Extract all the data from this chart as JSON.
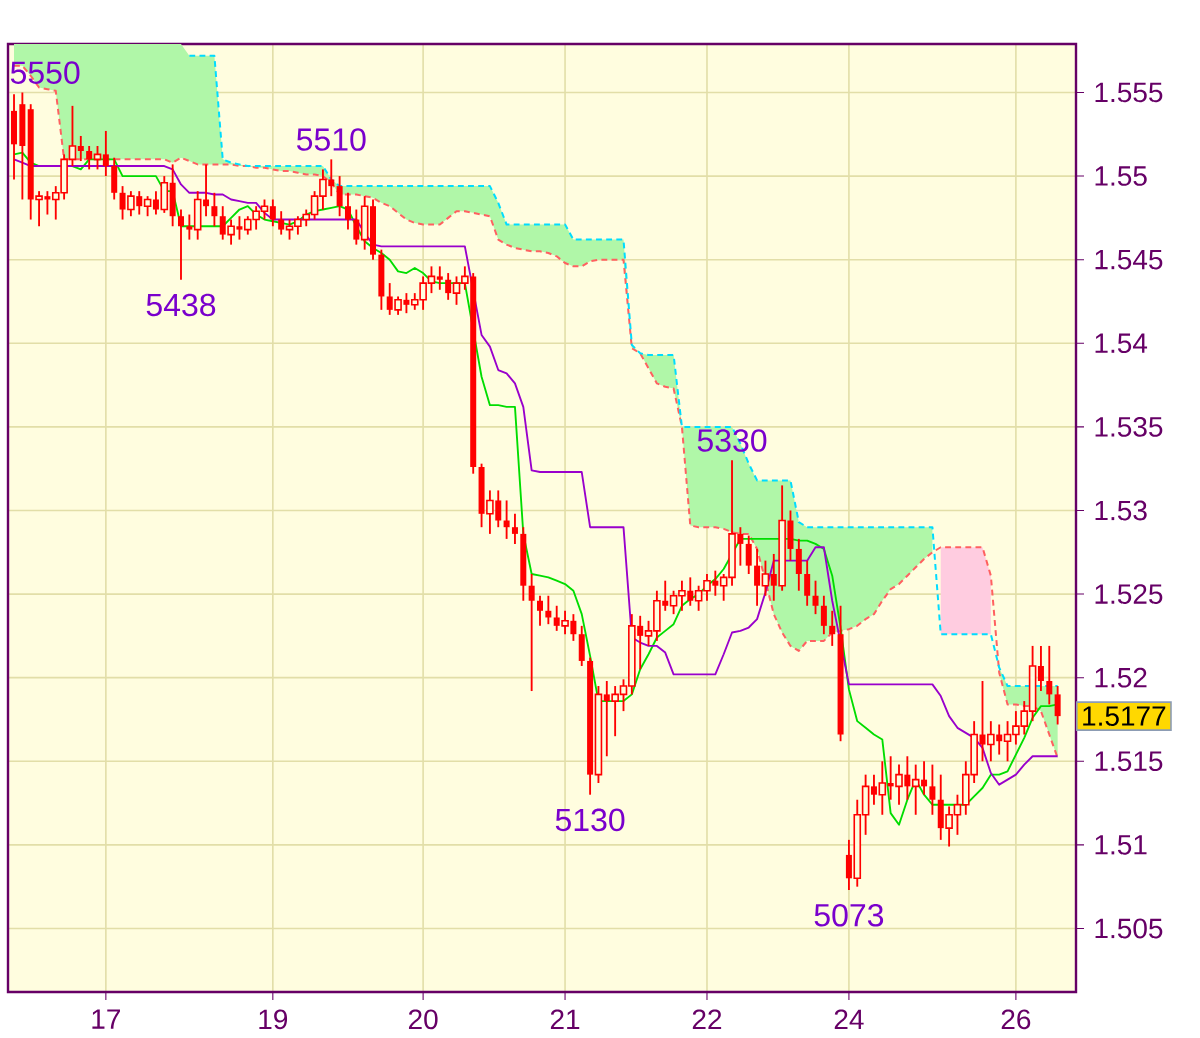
{
  "chart_data": {
    "type": "candlestick",
    "color": "#ff0000",
    "categories": [
      null,
      null,
      null,
      null,
      null,
      null,
      null,
      null,
      null,
      null,
      null,
      "17",
      null,
      null,
      null,
      null,
      null,
      null,
      null,
      null,
      null,
      null,
      null,
      null,
      null,
      null,
      null,
      null,
      null,
      null,
      null,
      "19",
      null,
      null,
      null,
      null,
      null,
      null,
      null,
      null,
      null,
      null,
      null,
      null,
      null,
      null,
      null,
      null,
      null,
      "20",
      null,
      null,
      null,
      null,
      null,
      null,
      null,
      null,
      null,
      null,
      null,
      null,
      null,
      null,
      null,
      null,
      "21",
      null,
      null,
      null,
      null,
      null,
      null,
      null,
      null,
      null,
      null,
      null,
      null,
      null,
      null,
      null,
      null,
      "22",
      null,
      null,
      null,
      null,
      null,
      null,
      null,
      null,
      null,
      null,
      null,
      null,
      null,
      null,
      null,
      null,
      "24",
      null,
      null,
      null,
      null,
      null,
      null,
      null,
      null,
      null,
      null,
      null,
      null,
      null,
      null,
      null,
      null,
      null,
      null,
      null,
      "26",
      null,
      null,
      null,
      null,
      null
    ],
    "ohlc": [
      [
        1.5539,
        1.5549,
        1.5498,
        1.5519
      ],
      [
        1.5543,
        1.555,
        1.5486,
        1.5518
      ],
      [
        1.554,
        1.5543,
        1.5474,
        1.5486
      ],
      [
        1.5486,
        1.5491,
        1.547,
        1.5488
      ],
      [
        1.5488,
        1.5491,
        1.5477,
        1.5486
      ],
      [
        1.5486,
        1.5494,
        1.5474,
        1.549
      ],
      [
        1.549,
        1.5513,
        1.5486,
        1.551
      ],
      [
        1.551,
        1.5542,
        1.5506,
        1.5518
      ],
      [
        1.5518,
        1.5524,
        1.5509,
        1.5515
      ],
      [
        1.5515,
        1.5518,
        1.5504,
        1.551
      ],
      [
        1.551,
        1.5518,
        1.5504,
        1.5513
      ],
      [
        1.5513,
        1.5527,
        1.55,
        1.5506
      ],
      [
        1.5506,
        1.5511,
        1.5486,
        1.549
      ],
      [
        1.549,
        1.5494,
        1.5474,
        1.548
      ],
      [
        1.548,
        1.5491,
        1.5476,
        1.5488
      ],
      [
        1.5488,
        1.5491,
        1.5477,
        1.5482
      ],
      [
        1.5482,
        1.5488,
        1.5476,
        1.5486
      ],
      [
        1.5486,
        1.5491,
        1.5477,
        1.548
      ],
      [
        1.548,
        1.55,
        1.5478,
        1.5496
      ],
      [
        1.5496,
        1.5507,
        1.547,
        1.5476
      ],
      [
        1.5476,
        1.548,
        1.5438,
        1.547
      ],
      [
        1.547,
        1.5477,
        1.5462,
        1.5468
      ],
      [
        1.5468,
        1.5491,
        1.5462,
        1.5486
      ],
      [
        1.5486,
        1.5507,
        1.5476,
        1.5482
      ],
      [
        1.5482,
        1.549,
        1.547,
        1.5476
      ],
      [
        1.5476,
        1.5482,
        1.5462,
        1.5465
      ],
      [
        1.5465,
        1.5474,
        1.5459,
        1.547
      ],
      [
        1.547,
        1.5476,
        1.5462,
        1.5468
      ],
      [
        1.5468,
        1.5476,
        1.5465,
        1.5474
      ],
      [
        1.5474,
        1.5482,
        1.5468,
        1.5479
      ],
      [
        1.5479,
        1.5486,
        1.5474,
        1.5482
      ],
      [
        1.5482,
        1.5486,
        1.547,
        1.5474
      ],
      [
        1.5474,
        1.5479,
        1.5465,
        1.5468
      ],
      [
        1.5468,
        1.5474,
        1.5462,
        1.547
      ],
      [
        1.547,
        1.5476,
        1.5465,
        1.5474
      ],
      [
        1.5474,
        1.548,
        1.547,
        1.5477
      ],
      [
        1.5477,
        1.5491,
        1.5474,
        1.5488
      ],
      [
        1.5488,
        1.5504,
        1.548,
        1.5498
      ],
      [
        1.5498,
        1.551,
        1.5488,
        1.5494
      ],
      [
        1.5494,
        1.55,
        1.5476,
        1.5482
      ],
      [
        1.5482,
        1.549,
        1.5468,
        1.5474
      ],
      [
        1.5474,
        1.548,
        1.5459,
        1.5462
      ],
      [
        1.5462,
        1.5488,
        1.5456,
        1.5482
      ],
      [
        1.5482,
        1.5486,
        1.545,
        1.5453
      ],
      [
        1.5453,
        1.5456,
        1.542,
        1.5428
      ],
      [
        1.5428,
        1.5436,
        1.5417,
        1.542
      ],
      [
        1.542,
        1.5428,
        1.5417,
        1.5426
      ],
      [
        1.5426,
        1.543,
        1.5418,
        1.5423
      ],
      [
        1.5423,
        1.543,
        1.542,
        1.5426
      ],
      [
        1.5426,
        1.544,
        1.542,
        1.5436
      ],
      [
        1.5436,
        1.5446,
        1.543,
        1.544
      ],
      [
        1.544,
        1.5446,
        1.5432,
        1.5438
      ],
      [
        1.5438,
        1.5442,
        1.5426,
        1.543
      ],
      [
        1.543,
        1.544,
        1.5423,
        1.5436
      ],
      [
        1.5436,
        1.5446,
        1.5432,
        1.544
      ],
      [
        1.544,
        1.5442,
        1.5322,
        1.5326
      ],
      [
        1.5326,
        1.5328,
        1.529,
        1.5298
      ],
      [
        1.5298,
        1.5312,
        1.5286,
        1.5306
      ],
      [
        1.5306,
        1.5312,
        1.529,
        1.5294
      ],
      [
        1.5294,
        1.5306,
        1.5283,
        1.529
      ],
      [
        1.529,
        1.5298,
        1.528,
        1.5286
      ],
      [
        1.5286,
        1.529,
        1.5246,
        1.5255
      ],
      [
        1.5255,
        1.5262,
        1.5192,
        1.5246
      ],
      [
        1.5246,
        1.5249,
        1.5231,
        1.524
      ],
      [
        1.524,
        1.5249,
        1.5232,
        1.5236
      ],
      [
        1.5236,
        1.5243,
        1.5228,
        1.5231
      ],
      [
        1.5231,
        1.524,
        1.5226,
        1.5234
      ],
      [
        1.5234,
        1.5238,
        1.5222,
        1.5226
      ],
      [
        1.5226,
        1.5231,
        1.5207,
        1.521
      ],
      [
        1.521,
        1.5212,
        1.513,
        1.5142
      ],
      [
        1.5142,
        1.5195,
        1.5137,
        1.519
      ],
      [
        1.519,
        1.5198,
        1.5153,
        1.5186
      ],
      [
        1.5186,
        1.5195,
        1.5165,
        1.519
      ],
      [
        1.519,
        1.5199,
        1.518,
        1.5195
      ],
      [
        1.5195,
        1.5238,
        1.519,
        1.5231
      ],
      [
        1.5231,
        1.5237,
        1.5205,
        1.5225
      ],
      [
        1.5225,
        1.5234,
        1.5219,
        1.5228
      ],
      [
        1.5228,
        1.5252,
        1.5222,
        1.5246
      ],
      [
        1.5246,
        1.5258,
        1.524,
        1.5243
      ],
      [
        1.5243,
        1.5252,
        1.5238,
        1.5249
      ],
      [
        1.5249,
        1.5258,
        1.524,
        1.5252
      ],
      [
        1.5252,
        1.526,
        1.5243,
        1.5246
      ],
      [
        1.5246,
        1.5255,
        1.524,
        1.5252
      ],
      [
        1.5252,
        1.5262,
        1.5246,
        1.5258
      ],
      [
        1.5258,
        1.5264,
        1.5249,
        1.5255
      ],
      [
        1.5255,
        1.5262,
        1.5246,
        1.526
      ],
      [
        1.526,
        1.533,
        1.5255,
        1.5286
      ],
      [
        1.5286,
        1.529,
        1.5267,
        1.528
      ],
      [
        1.528,
        1.5285,
        1.5262,
        1.5267
      ],
      [
        1.5267,
        1.5277,
        1.5243,
        1.5255
      ],
      [
        1.5255,
        1.527,
        1.5249,
        1.5262
      ],
      [
        1.5262,
        1.5274,
        1.5246,
        1.5255
      ],
      [
        1.5255,
        1.5315,
        1.5252,
        1.5294
      ],
      [
        1.5294,
        1.53,
        1.527,
        1.5277
      ],
      [
        1.5277,
        1.5283,
        1.5252,
        1.5262
      ],
      [
        1.5262,
        1.527,
        1.5243,
        1.5249
      ],
      [
        1.5249,
        1.5258,
        1.5238,
        1.5243
      ],
      [
        1.5243,
        1.5249,
        1.5226,
        1.5231
      ],
      [
        1.5231,
        1.524,
        1.5219,
        1.5226
      ],
      [
        1.5226,
        1.5243,
        1.5162,
        1.5166
      ],
      [
        1.5094,
        1.5103,
        1.5073,
        1.508
      ],
      [
        1.508,
        1.5127,
        1.5075,
        1.5118
      ],
      [
        1.5118,
        1.5142,
        1.5106,
        1.5135
      ],
      [
        1.5135,
        1.5142,
        1.5124,
        1.513
      ],
      [
        1.513,
        1.515,
        1.5118,
        1.5137
      ],
      [
        1.5137,
        1.5153,
        1.5127,
        1.5135
      ],
      [
        1.5135,
        1.5148,
        1.5124,
        1.5142
      ],
      [
        1.5142,
        1.5153,
        1.5127,
        1.5135
      ],
      [
        1.5135,
        1.5148,
        1.5118,
        1.5139
      ],
      [
        1.5139,
        1.515,
        1.513,
        1.5135
      ],
      [
        1.5135,
        1.5148,
        1.5118,
        1.5127
      ],
      [
        1.5127,
        1.5142,
        1.5103,
        1.511
      ],
      [
        1.511,
        1.5123,
        1.5099,
        1.5118
      ],
      [
        1.5118,
        1.513,
        1.5106,
        1.5124
      ],
      [
        1.5124,
        1.515,
        1.5118,
        1.5142
      ],
      [
        1.5142,
        1.5174,
        1.5137,
        1.5166
      ],
      [
        1.5166,
        1.5198,
        1.515,
        1.516
      ],
      [
        1.516,
        1.5174,
        1.515,
        1.5166
      ],
      [
        1.5166,
        1.5172,
        1.5154,
        1.5162
      ],
      [
        1.5162,
        1.5174,
        1.515,
        1.5166
      ],
      [
        1.5166,
        1.518,
        1.516,
        1.5171
      ],
      [
        1.5171,
        1.5186,
        1.5166,
        1.518
      ],
      [
        1.518,
        1.5219,
        1.5174,
        1.5207
      ],
      [
        1.5207,
        1.5219,
        1.5192,
        1.5198
      ],
      [
        1.5198,
        1.5219,
        1.5184,
        1.519
      ],
      [
        1.519,
        1.5195,
        1.5172,
        1.5177
      ]
    ],
    "series": [
      {
        "type": "line",
        "color": "#ff6060",
        "line_style": "dashed",
        "values": [
          1.5566,
          1.5566,
          1.556,
          1.5553,
          1.5552,
          1.5551,
          1.551,
          1.551,
          1.551,
          1.551,
          1.551,
          1.551,
          1.551,
          1.551,
          1.551,
          1.551,
          1.551,
          1.551,
          1.551,
          1.5508,
          1.5511,
          1.5509,
          1.5507,
          1.5507,
          1.5507,
          1.5507,
          1.5507,
          1.5506,
          1.5506,
          1.5505,
          1.5505,
          1.5504,
          1.5503,
          1.5503,
          1.5502,
          1.5501,
          1.5501,
          1.55,
          1.5496,
          1.5489,
          1.5489,
          1.5489,
          1.5488,
          1.5487,
          1.5484,
          1.5482,
          1.5478,
          1.5474,
          1.5472,
          1.5471,
          1.5471,
          1.5471,
          1.5475,
          1.5479,
          1.5479,
          1.5478,
          1.5477,
          1.5476,
          1.5462,
          1.5459,
          1.5457,
          1.5456,
          1.5455,
          1.5455,
          1.5454,
          1.5452,
          1.5448,
          1.5446,
          1.5446,
          1.5449,
          1.545,
          1.545,
          1.545,
          1.545,
          1.5397,
          1.5394,
          1.5385,
          1.5376,
          1.5374,
          1.5373,
          1.535,
          1.5291,
          1.529,
          1.529,
          1.529,
          1.5289,
          1.5287,
          1.5286,
          1.5286,
          1.5277,
          1.5258,
          1.5238,
          1.5227,
          1.5219,
          1.5216,
          1.5222,
          1.5222,
          1.5222,
          1.5227,
          1.5228,
          1.5229,
          1.5231,
          1.5235,
          1.5238,
          1.5246,
          1.5253,
          1.5256,
          1.5261,
          1.5266,
          1.5271,
          1.5275,
          1.5278,
          1.5278,
          1.5278,
          1.5278,
          1.5278,
          1.5278,
          1.5261,
          1.5203,
          1.5184,
          1.5184,
          1.5183,
          1.5183,
          1.518,
          1.5166,
          1.5152
        ],
        "lower": [
          1.5566,
          1.5566,
          1.556,
          1.5553,
          1.5552,
          1.5551,
          1.551,
          1.551,
          1.551,
          1.551,
          1.551,
          1.551,
          1.551,
          1.551,
          1.551,
          1.551,
          1.551,
          1.551,
          1.551,
          1.5508,
          1.5511,
          1.5509,
          1.5507,
          1.5507,
          1.5507,
          1.5507,
          1.5507,
          1.5506,
          1.5506,
          1.5505,
          1.5505,
          1.5504,
          1.5503,
          1.5503,
          1.5502,
          1.5501,
          1.5501,
          1.55,
          1.5496,
          1.5489,
          1.5489,
          1.5489,
          1.5488,
          1.5487,
          1.5484,
          1.5482,
          1.5478,
          1.5474,
          1.5472,
          1.5471,
          1.5471,
          1.5471,
          1.5475,
          1.5479,
          1.5479,
          1.5478,
          1.5477,
          1.5476,
          1.5462,
          1.5459,
          1.5457,
          1.5456,
          1.5455,
          1.5455,
          1.5454,
          1.5452,
          1.5448,
          1.5446,
          1.5446,
          1.5449,
          1.545,
          1.545,
          1.545,
          1.545,
          1.5397,
          1.5394,
          1.5385,
          1.5376,
          1.5374,
          1.5373,
          1.535,
          1.5291,
          1.529,
          1.529,
          1.529,
          1.5289,
          1.5287,
          1.5286,
          1.5286,
          1.5277,
          1.5258,
          1.5238,
          1.5227,
          1.5219,
          1.5216,
          1.5222,
          1.5222,
          1.5222,
          1.5227,
          1.5228,
          1.5229,
          1.5231,
          1.5235,
          1.5238,
          1.5246,
          1.5253,
          1.5256,
          1.5261,
          1.5266,
          1.5271,
          1.5275,
          null,
          null,
          null,
          null,
          null,
          null,
          null,
          1.5203,
          1.5184,
          1.5184,
          1.5183,
          1.5183,
          1.518,
          1.5166,
          1.5152
        ],
        "upper": [
          1.5579,
          1.5579,
          1.5579,
          1.5579,
          1.5579,
          1.5579,
          1.5579,
          1.5579,
          1.5579,
          1.5579,
          1.5579,
          1.5579,
          1.5579,
          1.5579,
          1.5579,
          1.5579,
          1.5579,
          1.5579,
          1.5579,
          1.5579,
          1.5579,
          1.5572,
          1.5572,
          1.5572,
          1.5572,
          1.551,
          1.5508,
          1.5507,
          1.5506,
          1.5506,
          1.5506,
          1.5506,
          1.5506,
          1.5506,
          1.5506,
          1.5506,
          1.5506,
          1.5506,
          1.5498,
          1.5494,
          1.5494,
          1.5494,
          1.5494,
          1.5494,
          1.5494,
          1.5494,
          1.5494,
          1.5494,
          1.5494,
          1.5494,
          1.5494,
          1.5494,
          1.5494,
          1.5494,
          1.5494,
          1.5494,
          1.5494,
          1.5494,
          1.5484,
          1.5471,
          1.5471,
          1.5471,
          1.5471,
          1.5471,
          1.5471,
          1.5471,
          1.5471,
          1.5462,
          1.5462,
          1.5462,
          1.5462,
          1.5462,
          1.5462,
          1.5462,
          1.5399,
          1.5394,
          1.5393,
          1.5393,
          1.5393,
          1.5393,
          1.535,
          1.535,
          1.535,
          1.535,
          1.535,
          1.535,
          1.535,
          1.534,
          1.5328,
          1.5318,
          1.5318,
          1.5318,
          1.5318,
          1.5318,
          1.5293,
          1.529,
          1.529,
          1.529,
          1.529,
          1.529,
          1.529,
          1.529,
          1.529,
          1.529,
          1.529,
          1.529,
          1.529,
          1.529,
          1.529,
          1.529,
          1.529,
          null,
          null,
          null,
          null,
          null,
          null,
          null,
          1.5206,
          1.5195,
          1.5195,
          1.5195,
          1.5195,
          1.5195,
          1.5195,
          1.5195
        ]
      },
      {
        "type": "line",
        "color": "#00dcff",
        "line_style": "dashed",
        "values": [
          null,
          null,
          null,
          null,
          null,
          null,
          null,
          null,
          null,
          null,
          null,
          null,
          null,
          null,
          null,
          null,
          null,
          null,
          null,
          null,
          null,
          1.5572,
          1.5572,
          1.5572,
          1.5572,
          1.551,
          1.5508,
          1.5507,
          1.5506,
          1.5506,
          1.5506,
          1.5506,
          1.5506,
          1.5506,
          1.5506,
          1.5506,
          1.5506,
          1.5506,
          1.5498,
          1.5494,
          1.5494,
          1.5494,
          1.5494,
          1.5494,
          1.5494,
          1.5494,
          1.5494,
          1.5494,
          1.5494,
          1.5494,
          1.5494,
          1.5494,
          1.5494,
          1.5494,
          1.5494,
          1.5494,
          1.5494,
          1.5494,
          1.5484,
          1.5471,
          1.5471,
          1.5471,
          1.5471,
          1.5471,
          1.5471,
          1.5471,
          1.5471,
          1.5462,
          1.5462,
          1.5462,
          1.5462,
          1.5462,
          1.5462,
          1.5462,
          1.5399,
          1.5394,
          1.5393,
          1.5393,
          1.5393,
          1.5393,
          1.535,
          1.535,
          1.535,
          1.535,
          1.535,
          1.535,
          1.535,
          1.534,
          1.5328,
          1.5318,
          1.5318,
          1.5318,
          1.5318,
          1.5318,
          1.5293,
          1.529,
          1.529,
          1.529,
          1.529,
          1.529,
          1.529,
          1.529,
          1.529,
          1.529,
          1.529,
          1.529,
          1.529,
          1.529,
          1.529,
          1.529,
          1.529,
          1.5226,
          1.5226,
          1.5226,
          1.5226,
          1.5226,
          1.5226,
          1.5226,
          1.5206,
          1.5195,
          1.5195,
          1.5195,
          1.5195,
          1.5195,
          1.5195,
          1.5195
        ],
        "lower": [
          null,
          null,
          null,
          null,
          null,
          null,
          null,
          null,
          null,
          null,
          null,
          null,
          null,
          null,
          null,
          null,
          null,
          null,
          null,
          null,
          null,
          null,
          null,
          null,
          null,
          null,
          null,
          null,
          null,
          null,
          null,
          null,
          null,
          null,
          null,
          null,
          null,
          null,
          null,
          null,
          null,
          null,
          null,
          null,
          null,
          null,
          null,
          null,
          null,
          null,
          null,
          null,
          null,
          null,
          null,
          null,
          null,
          null,
          null,
          null,
          null,
          null,
          null,
          null,
          null,
          null,
          null,
          null,
          null,
          null,
          null,
          null,
          null,
          null,
          null,
          null,
          null,
          null,
          null,
          null,
          null,
          null,
          null,
          null,
          null,
          null,
          null,
          null,
          null,
          null,
          null,
          null,
          null,
          null,
          null,
          null,
          null,
          null,
          null,
          null,
          null,
          null,
          null,
          null,
          null,
          null,
          null,
          null,
          null,
          null,
          null,
          1.5226,
          1.5226,
          1.5226,
          1.5226,
          1.5226,
          1.5226,
          1.5226,
          null,
          null,
          null,
          null,
          null,
          null,
          null,
          null
        ],
        "upper": [
          null,
          null,
          null,
          null,
          null,
          null,
          null,
          null,
          null,
          null,
          null,
          null,
          null,
          null,
          null,
          null,
          null,
          null,
          null,
          null,
          null,
          null,
          null,
          null,
          null,
          null,
          null,
          null,
          null,
          null,
          null,
          null,
          null,
          null,
          null,
          null,
          null,
          null,
          null,
          null,
          null,
          null,
          null,
          null,
          null,
          null,
          null,
          null,
          null,
          null,
          null,
          null,
          null,
          null,
          null,
          null,
          null,
          null,
          null,
          null,
          null,
          null,
          null,
          null,
          null,
          null,
          null,
          null,
          null,
          null,
          null,
          null,
          null,
          null,
          null,
          null,
          null,
          null,
          null,
          null,
          null,
          null,
          null,
          null,
          null,
          null,
          null,
          null,
          null,
          null,
          null,
          null,
          null,
          null,
          null,
          null,
          null,
          null,
          null,
          null,
          null,
          null,
          null,
          null,
          null,
          null,
          null,
          null,
          null,
          null,
          null,
          1.5278,
          1.5278,
          1.5278,
          1.5278,
          1.5278,
          1.5278,
          1.5261,
          null,
          null,
          null,
          null,
          null,
          null,
          null,
          null
        ]
      },
      {
        "type": "line",
        "color": "#00dd00",
        "values": [
          1.5513,
          1.5514,
          1.5508,
          1.5506,
          null,
          null,
          null,
          1.5506,
          1.5504,
          1.551,
          1.551,
          1.551,
          1.551,
          1.55,
          1.55,
          1.55,
          1.55,
          1.55,
          1.5491,
          1.5491,
          1.547,
          1.547,
          1.547,
          1.547,
          1.547,
          1.547,
          1.5475,
          1.548,
          1.5482,
          1.5477,
          1.5474,
          1.5473,
          1.5472,
          1.5471,
          1.5473,
          1.5477,
          1.5479,
          1.548,
          1.5481,
          1.5482,
          1.548,
          1.547,
          1.5461,
          1.5457,
          1.5454,
          1.545,
          1.5443,
          1.5442,
          1.5445,
          1.5442,
          1.5437,
          1.5436,
          1.5436,
          1.5436,
          1.5436,
          null,
          1.538,
          1.5363,
          1.5363,
          1.5362,
          1.5362,
          1.5286,
          1.5262,
          1.5261,
          1.526,
          1.5258,
          1.5256,
          1.5252,
          1.5238,
          1.5213,
          1.5186,
          1.5186,
          1.5186,
          1.5186,
          1.519,
          1.5205,
          1.5214,
          1.5224,
          1.5228,
          1.5232,
          1.5243,
          1.5247,
          1.525,
          1.5255,
          1.5259,
          1.5265,
          1.5274,
          1.5283,
          1.5283,
          1.5283,
          1.5283,
          1.5283,
          1.5283,
          1.5283,
          1.5282,
          1.5282,
          1.528,
          1.5277,
          1.5261,
          1.523,
          1.5193,
          1.5174,
          1.517,
          1.5166,
          1.5163,
          1.5119,
          1.5112,
          1.5127,
          1.5139,
          1.513,
          1.5124,
          1.5124,
          1.5124,
          1.5124,
          1.5124,
          1.5129,
          1.5134,
          1.5142,
          1.5142,
          1.5144,
          1.5154,
          1.5164,
          1.5176,
          1.5183,
          1.5183,
          1.5184
        ]
      },
      {
        "type": "line",
        "color": "#9900cc",
        "values": [
          1.551,
          1.5508,
          1.5506,
          1.5506,
          1.5506,
          1.5506,
          1.5506,
          1.5506,
          1.5506,
          1.5506,
          1.5506,
          1.5506,
          1.5506,
          1.5506,
          1.5506,
          1.5506,
          1.5506,
          1.5506,
          1.5506,
          1.5504,
          1.5495,
          1.549,
          1.549,
          1.549,
          1.5489,
          1.5489,
          1.5486,
          1.5485,
          1.5484,
          1.5484,
          1.5478,
          1.5474,
          1.5474,
          1.5474,
          1.5474,
          1.5474,
          1.5474,
          1.5474,
          1.5474,
          1.5474,
          1.5474,
          1.5474,
          1.5466,
          1.5459,
          1.5458,
          1.5458,
          1.5458,
          1.5458,
          1.5458,
          1.5458,
          1.5458,
          1.5458,
          1.5458,
          1.5458,
          1.5458,
          null,
          1.5405,
          1.5398,
          1.5384,
          1.5382,
          1.5376,
          1.5362,
          1.5324,
          1.5323,
          1.5323,
          1.5323,
          1.5323,
          1.5323,
          1.5323,
          1.529,
          1.529,
          1.529,
          1.529,
          1.529,
          1.5224,
          1.5221,
          1.5219,
          1.5219,
          1.5215,
          1.5202,
          1.5202,
          1.5202,
          1.5202,
          1.5202,
          1.5202,
          1.5214,
          1.5227,
          1.5228,
          1.523,
          1.5235,
          1.5251,
          1.527,
          1.527,
          1.527,
          1.527,
          1.527,
          1.5278,
          1.5278,
          1.5246,
          null,
          1.5196,
          1.5196,
          1.5196,
          1.5196,
          1.5196,
          1.5196,
          1.5196,
          1.5196,
          1.5196,
          1.5196,
          1.5196,
          1.5189,
          1.5177,
          1.517,
          1.5167,
          1.5164,
          1.5158,
          1.5143,
          1.5136,
          1.5139,
          1.5142,
          1.5148,
          1.5153,
          1.5153,
          1.5153,
          1.5153
        ]
      }
    ],
    "ylim": [
      1.5012,
      1.5579
    ],
    "yticks": [
      1.505,
      1.51,
      1.515,
      1.52,
      1.525,
      1.53,
      1.535,
      1.54,
      1.545,
      1.55,
      1.555
    ],
    "grid": true,
    "annotations": [
      {
        "text": "5550",
        "y": 1.555
      },
      {
        "text": "5510",
        "y": 1.551
      },
      {
        "text": "5438",
        "y": 1.5438
      },
      {
        "text": "5330",
        "y": 1.533
      },
      {
        "text": "5130",
        "y": 1.513
      },
      {
        "text": "5073",
        "y": 1.5073
      },
      "1.5177"
    ]
  }
}
